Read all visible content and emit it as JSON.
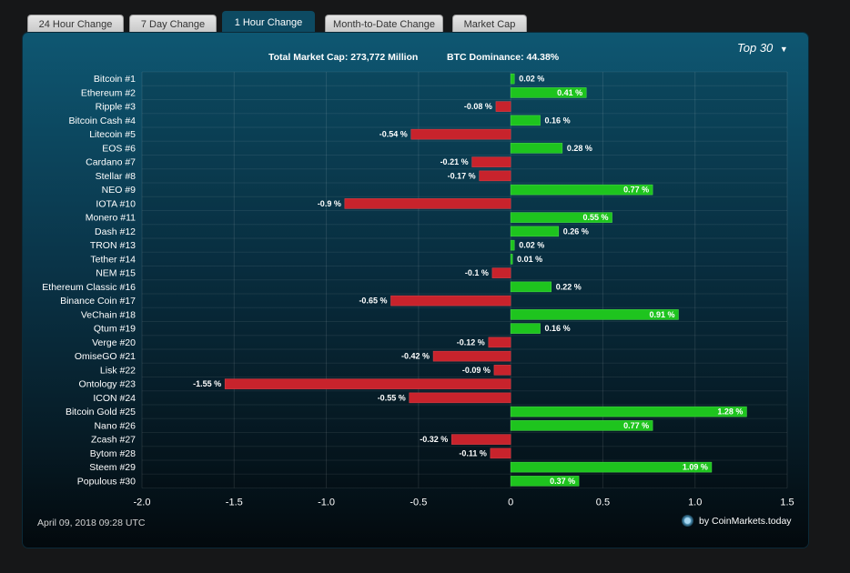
{
  "tabs": [
    {
      "label": "24 Hour Change",
      "active": false
    },
    {
      "label": "7 Day Change",
      "active": false
    },
    {
      "label": "1 Hour Change",
      "active": true
    },
    {
      "label": "Month-to-Date Change",
      "active": false
    },
    {
      "label": "Market Cap",
      "active": false
    }
  ],
  "header": {
    "market_cap": "Total Market Cap: 273,772 Million",
    "btc_dominance": "BTC Dominance: 44.38%"
  },
  "selector": {
    "label": "Top 30",
    "arrow": "▼"
  },
  "footer": {
    "date": "April 09, 2018 09:28 UTC",
    "credit": "by CoinMarkets.today",
    "logo_icon": "coinmarkets-logo-icon"
  },
  "colors": {
    "positive": "#1ec41e",
    "negative": "#c8232c",
    "active_tab": "#0d4a62"
  },
  "chart_data": {
    "type": "bar",
    "orientation": "horizontal",
    "xlim": [
      -2.0,
      1.5
    ],
    "ticks": [
      -2.0,
      -1.5,
      -1.0,
      -0.5,
      0,
      0.5,
      1.0,
      1.5
    ],
    "tick_labels": [
      "-2.0",
      "-1.5",
      "-1.0",
      "-0.5",
      "0",
      "0.5",
      "1.0",
      "1.5"
    ],
    "grid": true,
    "categories": [
      "Bitcoin #1",
      "Ethereum #2",
      "Ripple #3",
      "Bitcoin Cash #4",
      "Litecoin #5",
      "EOS #6",
      "Cardano #7",
      "Stellar #8",
      "NEO #9",
      "IOTA #10",
      "Monero #11",
      "Dash #12",
      "TRON #13",
      "Tether #14",
      "NEM #15",
      "Ethereum Classic #16",
      "Binance Coin #17",
      "VeChain #18",
      "Qtum #19",
      "Verge #20",
      "OmiseGO #21",
      "Lisk #22",
      "Ontology #23",
      "ICON #24",
      "Bitcoin Gold #25",
      "Nano #26",
      "Zcash #27",
      "Bytom #28",
      "Steem #29",
      "Populous #30"
    ],
    "values": [
      0.02,
      0.41,
      -0.08,
      0.16,
      -0.54,
      0.28,
      -0.21,
      -0.17,
      0.77,
      -0.9,
      0.55,
      0.26,
      0.02,
      0.01,
      -0.1,
      0.22,
      -0.65,
      0.91,
      0.16,
      -0.12,
      -0.42,
      -0.09,
      -1.55,
      -0.55,
      1.28,
      0.77,
      -0.32,
      -0.11,
      1.09,
      0.37
    ],
    "value_labels": [
      "0.02 %",
      "0.41 %",
      "-0.08 %",
      "0.16 %",
      "-0.54 %",
      "0.28 %",
      "-0.21 %",
      "-0.17 %",
      "0.77 %",
      "-0.9 %",
      "0.55 %",
      "0.26 %",
      "0.02 %",
      "0.01 %",
      "-0.1 %",
      "0.22 %",
      "-0.65 %",
      "0.91 %",
      "0.16 %",
      "-0.12 %",
      "-0.42 %",
      "-0.09 %",
      "-1.55 %",
      "-0.55 %",
      "1.28 %",
      "0.77 %",
      "-0.32 %",
      "-0.11 %",
      "1.09 %",
      "0.37 %"
    ]
  }
}
